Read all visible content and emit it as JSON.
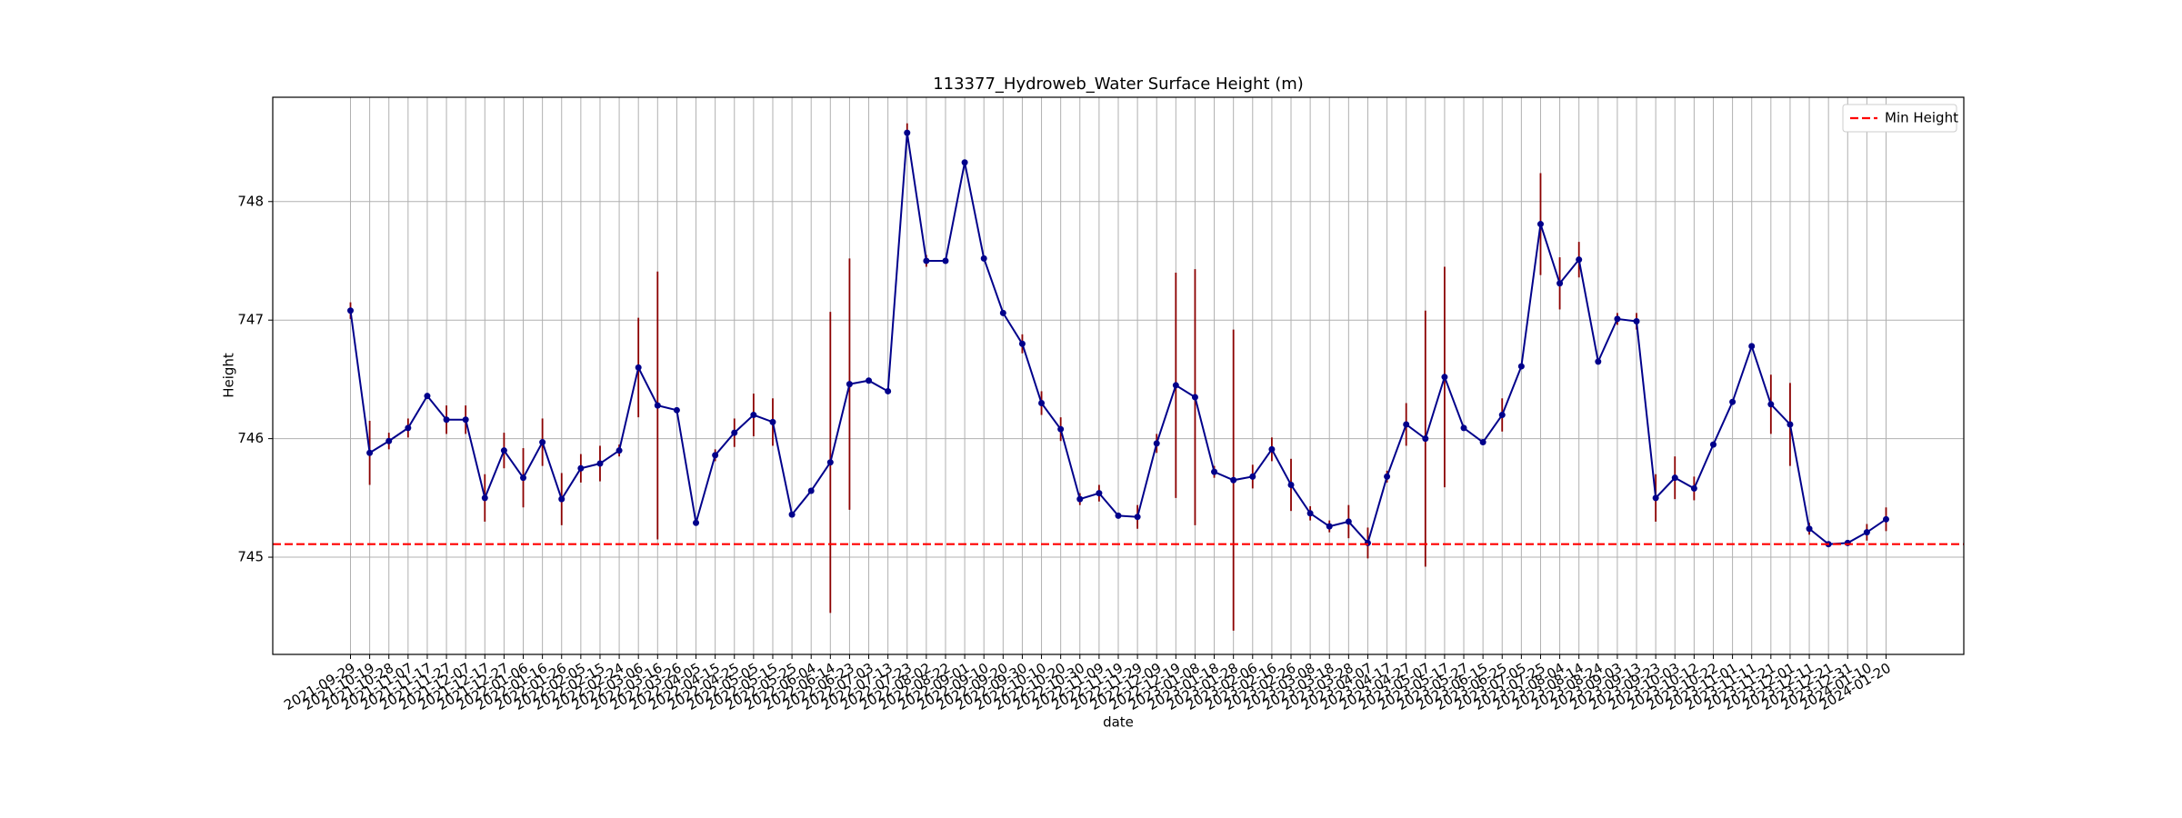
{
  "chart_data": {
    "type": "line",
    "title": "113377_Hydroweb_Water Surface Height (m)",
    "xlabel": "date",
    "ylabel": "Height",
    "categories": [
      "2021-09-29",
      "2021-10-19",
      "2021-10-28",
      "2021-11-07",
      "2021-11-17",
      "2021-11-27",
      "2021-12-07",
      "2021-12-17",
      "2021-12-27",
      "2022-01-06",
      "2022-01-16",
      "2022-01-26",
      "2022-02-05",
      "2022-02-15",
      "2022-02-24",
      "2022-03-06",
      "2022-03-16",
      "2022-03-26",
      "2022-04-05",
      "2022-04-15",
      "2022-04-25",
      "2022-05-05",
      "2022-05-15",
      "2022-05-25",
      "2022-06-04",
      "2022-06-14",
      "2022-06-23",
      "2022-07-03",
      "2022-07-13",
      "2022-07-23",
      "2022-08-02",
      "2022-08-22",
      "2022-09-01",
      "2022-09-10",
      "2022-09-20",
      "2022-09-30",
      "2022-10-10",
      "2022-10-20",
      "2022-10-30",
      "2022-11-09",
      "2022-11-19",
      "2022-11-29",
      "2022-12-09",
      "2022-12-19",
      "2023-01-08",
      "2023-01-18",
      "2023-01-28",
      "2023-02-06",
      "2023-02-16",
      "2023-02-26",
      "2023-03-08",
      "2023-03-18",
      "2023-03-28",
      "2023-04-07",
      "2023-04-17",
      "2023-04-27",
      "2023-05-07",
      "2023-05-17",
      "2023-05-27",
      "2023-06-15",
      "2023-06-25",
      "2023-07-05",
      "2023-07-25",
      "2023-08-04",
      "2023-08-14",
      "2023-08-24",
      "2023-09-03",
      "2023-09-13",
      "2023-09-23",
      "2023-10-03",
      "2023-10-12",
      "2023-10-22",
      "2023-11-01",
      "2023-11-11",
      "2023-11-21",
      "2023-12-01",
      "2023-12-11",
      "2023-12-21",
      "2023-12-31",
      "2024-01-10",
      "2024-01-20"
    ],
    "series": [
      {
        "color": "#00008b",
        "error_color": "#8b0000",
        "values": [
          747.08,
          745.88,
          745.98,
          746.09,
          746.36,
          746.16,
          746.16,
          745.5,
          745.9,
          745.67,
          745.97,
          745.49,
          745.75,
          745.79,
          745.9,
          746.6,
          746.28,
          746.24,
          745.29,
          745.86,
          746.05,
          746.2,
          746.14,
          745.36,
          745.56,
          745.8,
          746.46,
          746.49,
          746.4,
          748.58,
          747.5,
          747.5,
          748.33,
          747.52,
          747.06,
          746.8,
          746.3,
          746.08,
          745.49,
          745.54,
          745.35,
          745.34,
          745.96,
          746.45,
          746.35,
          745.72,
          745.65,
          745.68,
          745.91,
          745.61,
          745.37,
          745.26,
          745.3,
          745.12,
          745.68,
          746.12,
          746.0,
          746.52,
          746.09,
          745.97,
          746.2,
          746.61,
          747.81,
          747.31,
          747.51,
          746.65,
          747.01,
          746.99,
          745.5,
          745.67,
          745.58,
          745.95,
          746.31,
          746.78,
          746.29,
          746.12,
          745.24,
          745.11,
          745.12,
          745.21,
          745.32
        ],
        "errors": [
          0.07,
          0.27,
          0.07,
          0.08,
          0.02,
          0.12,
          0.12,
          0.2,
          0.15,
          0.25,
          0.2,
          0.22,
          0.12,
          0.15,
          0.05,
          0.42,
          1.13,
          0.02,
          0.02,
          0.05,
          0.12,
          0.18,
          0.2,
          0.02,
          0.02,
          1.27,
          1.06,
          0.02,
          0.02,
          0.08,
          0.05,
          0.02,
          0.02,
          0.02,
          0.02,
          0.08,
          0.1,
          0.1,
          0.05,
          0.07,
          0.02,
          0.1,
          0.08,
          0.95,
          1.08,
          0.05,
          1.27,
          0.1,
          0.1,
          0.22,
          0.06,
          0.05,
          0.14,
          0.13,
          0.05,
          0.18,
          1.08,
          0.93,
          0.02,
          0.02,
          0.14,
          0.02,
          0.43,
          0.22,
          0.15,
          0.02,
          0.05,
          0.07,
          0.2,
          0.18,
          0.1,
          0.02,
          0.02,
          0.02,
          0.25,
          0.35,
          0.05,
          0.02,
          0.02,
          0.07,
          0.1
        ]
      }
    ],
    "reference_line": {
      "name": "Min Height",
      "value": 745.11,
      "color": "#ff0000",
      "dashed": true
    },
    "ylim": [
      744.18,
      748.88
    ],
    "yticks": [
      745,
      746,
      747,
      748
    ],
    "grid": true,
    "legend": "upper right"
  }
}
